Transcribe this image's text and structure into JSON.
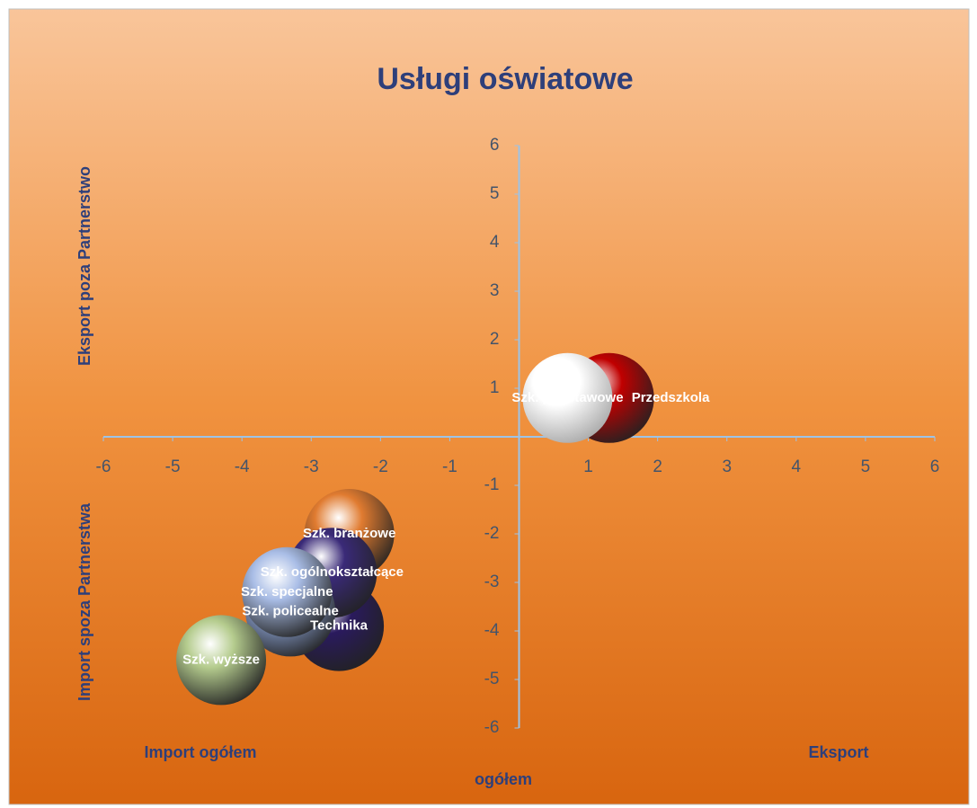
{
  "chart_data": {
    "type": "bubble",
    "title": "Usługi oświatowe",
    "axis_labels": {
      "y_top": "Eksport poza Partnerstwo",
      "y_bottom": "Import spoza Partnerstwa",
      "x_left": "Import ogółem",
      "x_right": "Eksport",
      "x_center": "ogółem"
    },
    "xlim": [
      -6,
      6
    ],
    "ylim": [
      -6,
      6
    ],
    "xticks": [
      -6,
      -5,
      -4,
      -3,
      -2,
      -1,
      1,
      2,
      3,
      4,
      5,
      6
    ],
    "yticks": [
      -6,
      -5,
      -4,
      -3,
      -2,
      -1,
      1,
      2,
      3,
      4,
      5,
      6
    ],
    "series": [
      {
        "name": "Przedszkola",
        "color": "#c00000",
        "x": [
          1.3
        ],
        "values": [
          0.8
        ],
        "sizes": [
          1
        ],
        "label_position": "right"
      },
      {
        "name": "Szk. podstawowe",
        "color": "#ffffff",
        "x": [
          0.7
        ],
        "values": [
          0.8
        ],
        "sizes": [
          1
        ],
        "label_position": "center"
      },
      {
        "name": "Szk. branżowe",
        "color": "#e07b30",
        "x": [
          -2.45
        ],
        "values": [
          -2.0
        ],
        "sizes": [
          1
        ],
        "label_position": "center"
      },
      {
        "name": "Technika",
        "color": "#2a1a5e",
        "x": [
          -2.6
        ],
        "values": [
          -3.9
        ],
        "sizes": [
          1
        ],
        "label_position": "center"
      },
      {
        "name": "Szk. ogólnokształcące",
        "color": "#3a2a78",
        "x": [
          -2.7
        ],
        "values": [
          -2.8
        ],
        "sizes": [
          1
        ],
        "label_position": "center"
      },
      {
        "name": "Szk. policealne",
        "color": "#8fa6d8",
        "x": [
          -3.3
        ],
        "values": [
          -3.6
        ],
        "sizes": [
          1
        ],
        "label_position": "center"
      },
      {
        "name": "Szk. specjalne",
        "color": "#a9bde6",
        "x": [
          -3.35
        ],
        "values": [
          -3.2
        ],
        "sizes": [
          1
        ],
        "label_position": "center"
      },
      {
        "name": "Szk. wyższe",
        "color": "#b5cc8e",
        "x": [
          -4.3
        ],
        "values": [
          -4.6
        ],
        "sizes": [
          1
        ],
        "label_position": "center"
      }
    ]
  }
}
